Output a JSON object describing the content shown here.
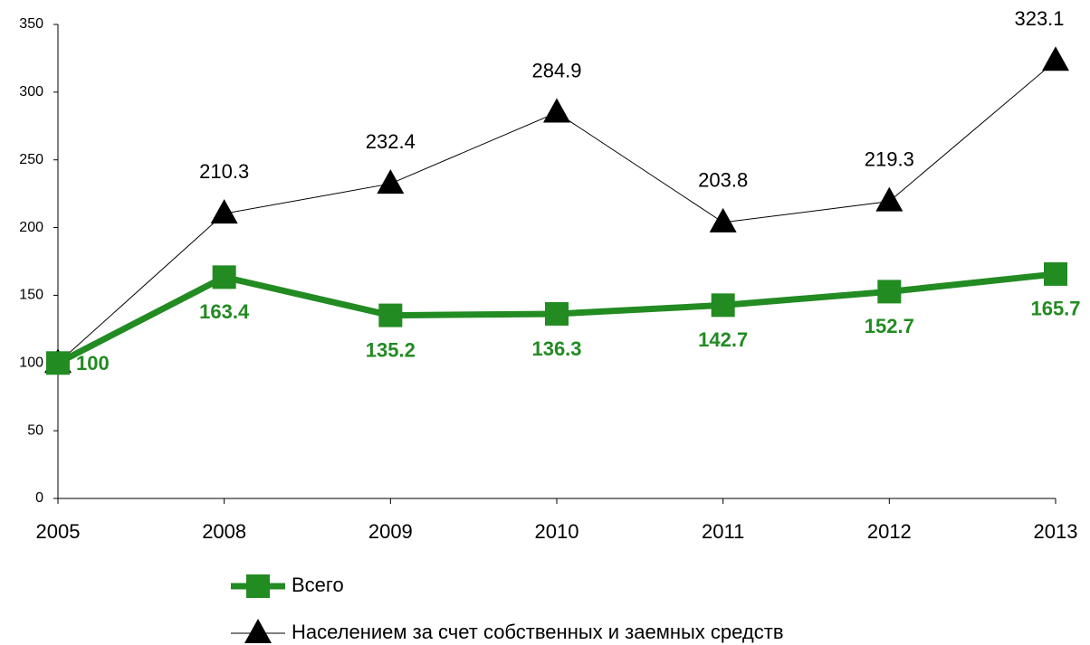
{
  "chart_data": {
    "type": "line",
    "categories": [
      "2005",
      "2008",
      "2009",
      "2010",
      "2011",
      "2012",
      "2013"
    ],
    "series": [
      {
        "name": "Всего",
        "color": "#228b22",
        "marker": "square",
        "values": [
          100,
          163.4,
          135.2,
          136.3,
          142.7,
          152.7,
          165.7
        ]
      },
      {
        "name": "Населением за счет собственных и заемных средств",
        "color": "#000000",
        "marker": "triangle",
        "values": [
          100,
          210.3,
          232.4,
          284.9,
          203.8,
          219.3,
          323.1
        ]
      }
    ],
    "ylim": [
      0,
      350
    ],
    "yticks": [
      0,
      50,
      100,
      150,
      200,
      250,
      300,
      350
    ],
    "grid": false,
    "legend": "bottom"
  }
}
